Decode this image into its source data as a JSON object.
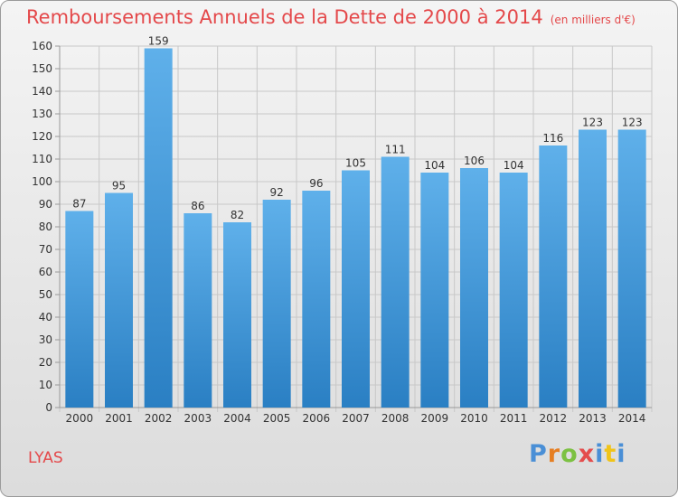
{
  "header": {
    "title": "Remboursements Annuels de la Dette de 2000 à 2014",
    "unit": "(en milliers d'€)"
  },
  "commune": "LYAS",
  "logo": {
    "text": "Proxiti",
    "letters": [
      "P",
      "r",
      "o",
      "x",
      "i",
      "t",
      "i"
    ],
    "colors": [
      "#4a8fd6",
      "#e67e22",
      "#7cc142",
      "#e44d4d",
      "#4a8fd6",
      "#f0c419",
      "#4a8fd6"
    ]
  },
  "colors": {
    "title": "#e4484a",
    "bar_light": "#5fb0ea",
    "bar_dark": "#2a7fc3",
    "grid": "#c8c8c8"
  },
  "chart_data": {
    "type": "bar",
    "categories": [
      "2000",
      "2001",
      "2002",
      "2003",
      "2004",
      "2005",
      "2006",
      "2007",
      "2008",
      "2009",
      "2010",
      "2011",
      "2012",
      "2013",
      "2014"
    ],
    "values": [
      87,
      95,
      159,
      86,
      82,
      92,
      96,
      105,
      111,
      104,
      106,
      104,
      116,
      123,
      123
    ],
    "title": "Remboursements Annuels de la Dette de 2000 à 2014",
    "xlabel": "",
    "ylabel": "",
    "ylim": [
      0,
      160
    ],
    "yticks": [
      0,
      10,
      20,
      30,
      40,
      50,
      60,
      70,
      80,
      90,
      100,
      110,
      120,
      130,
      140,
      150,
      160
    ],
    "grid": true,
    "data_labels": true
  }
}
